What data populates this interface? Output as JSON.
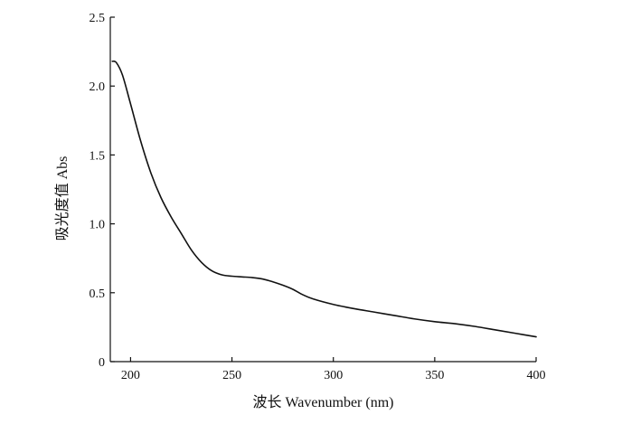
{
  "chart_data": {
    "type": "line",
    "title": "",
    "xlabel": "波长 Wavenumber (nm)",
    "ylabel": "吸光度值 Abs",
    "xlim": [
      190,
      400
    ],
    "ylim": [
      0,
      2.5
    ],
    "x_ticks": [
      200,
      250,
      300,
      350,
      400
    ],
    "x_tick_labels": [
      "200",
      "250",
      "300",
      "350",
      "400"
    ],
    "y_ticks": [
      0,
      0.5,
      1.0,
      1.5,
      2.0,
      2.5
    ],
    "y_tick_labels": [
      "0",
      "0.5",
      "1.0",
      "1.5",
      "2.0",
      "2.5"
    ],
    "grid": false,
    "legend": "none",
    "series": [
      {
        "color": "#111111",
        "x": [
          191,
          193,
          196,
          200,
          205,
          210,
          215,
          220,
          225,
          230,
          235,
          240,
          245,
          250,
          255,
          260,
          265,
          270,
          275,
          280,
          285,
          290,
          300,
          310,
          320,
          330,
          340,
          350,
          360,
          370,
          380,
          390,
          400
        ],
        "y": [
          2.18,
          2.17,
          2.08,
          1.87,
          1.6,
          1.37,
          1.19,
          1.05,
          0.93,
          0.81,
          0.72,
          0.66,
          0.63,
          0.62,
          0.615,
          0.61,
          0.6,
          0.58,
          0.555,
          0.525,
          0.485,
          0.455,
          0.415,
          0.385,
          0.36,
          0.335,
          0.31,
          0.29,
          0.275,
          0.255,
          0.23,
          0.205,
          0.18
        ]
      }
    ]
  }
}
